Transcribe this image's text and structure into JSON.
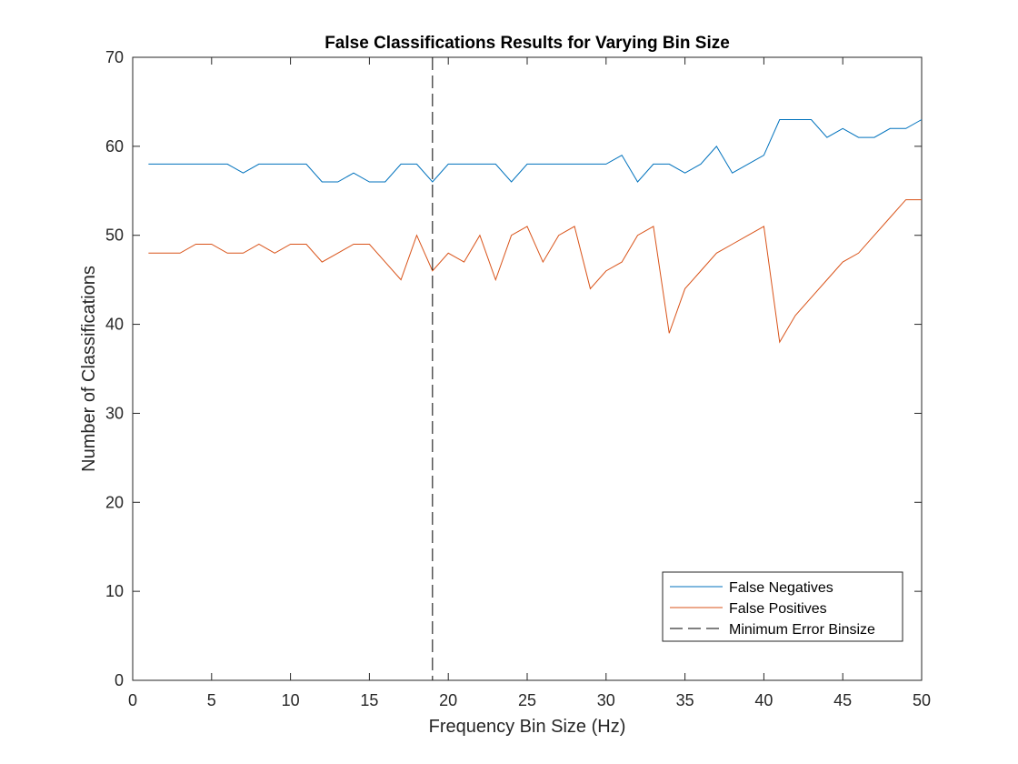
{
  "chart_data": {
    "type": "line",
    "title": "False Classifications Results for Varying Bin Size",
    "xlabel": "Frequency Bin Size (Hz)",
    "ylabel": "Number of Classifications",
    "xlim": [
      0,
      50
    ],
    "ylim": [
      0,
      70
    ],
    "xticks": [
      0,
      5,
      10,
      15,
      20,
      25,
      30,
      35,
      40,
      45,
      50
    ],
    "yticks": [
      0,
      10,
      20,
      30,
      40,
      50,
      60,
      70
    ],
    "grid": false,
    "legend_position": "bottom-right",
    "x": [
      1,
      2,
      3,
      4,
      5,
      6,
      7,
      8,
      9,
      10,
      11,
      12,
      13,
      14,
      15,
      16,
      17,
      18,
      19,
      20,
      21,
      22,
      23,
      24,
      25,
      26,
      27,
      28,
      29,
      30,
      31,
      32,
      33,
      34,
      35,
      36,
      37,
      38,
      39,
      40,
      41,
      42,
      43,
      44,
      45,
      46,
      47,
      48,
      49,
      50
    ],
    "series": [
      {
        "name": "False Negatives",
        "color": "#0072BD",
        "values": [
          58,
          58,
          58,
          58,
          58,
          58,
          57,
          58,
          58,
          58,
          58,
          56,
          56,
          57,
          56,
          56,
          58,
          58,
          56,
          58,
          58,
          58,
          58,
          56,
          58,
          58,
          58,
          58,
          58,
          58,
          59,
          56,
          58,
          58,
          57,
          58,
          60,
          57,
          58,
          59,
          63,
          63,
          63,
          61,
          62,
          61,
          61,
          62,
          62,
          63
        ]
      },
      {
        "name": "False Positives",
        "color": "#D95319",
        "values": [
          48,
          48,
          48,
          49,
          49,
          48,
          48,
          49,
          48,
          49,
          49,
          47,
          48,
          49,
          49,
          47,
          45,
          50,
          46,
          48,
          47,
          50,
          45,
          50,
          51,
          47,
          50,
          51,
          44,
          46,
          47,
          50,
          51,
          39,
          44,
          46,
          48,
          49,
          50,
          51,
          38,
          41,
          43,
          45,
          47,
          48,
          50,
          52,
          54,
          54
        ]
      }
    ],
    "reference_line": {
      "name": "Minimum Error Binsize",
      "x": 19,
      "color": "#000000",
      "style": "dashed"
    }
  }
}
